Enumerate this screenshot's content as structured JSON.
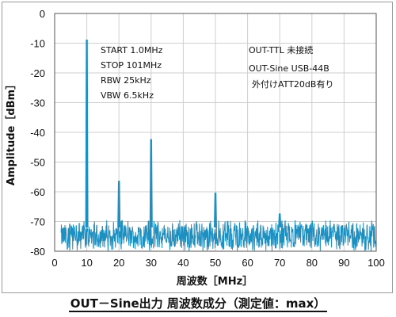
{
  "chart_data": {
    "type": "line",
    "xlabel": "周波数［MHz］",
    "ylabel": "Amplitude［dBm］",
    "xlim": [
      0,
      100
    ],
    "ylim": [
      -80,
      0
    ],
    "xticks": [
      0,
      10,
      20,
      30,
      40,
      50,
      60,
      70,
      80,
      90,
      100
    ],
    "yticks": [
      0,
      -10,
      -20,
      -30,
      -40,
      -50,
      -60,
      -70,
      -80
    ],
    "grid": true,
    "series_color": "#1f8fc0",
    "noise_floor": {
      "x_start": 2,
      "x_end": 101,
      "level_min": -79,
      "level_max": -71
    },
    "peaks": [
      {
        "x": 10,
        "y": -9
      },
      {
        "x": 20,
        "y": -56.5
      },
      {
        "x": 30,
        "y": -42.5
      },
      {
        "x": 50,
        "y": -60.5
      },
      {
        "x": 70,
        "y": -67.5
      }
    ],
    "annotations_left": [
      "START  1.0MHz",
      "STOP  101MHz",
      "RBW 25kHz",
      "VBW 6.5kHz"
    ],
    "annotations_right": [
      "OUT-TTL 未接続",
      "OUT-Sine USB-44B",
      "外付けATT20dB有り"
    ]
  },
  "caption": "OUT－Sine出力 周波数成分（測定値：max）"
}
